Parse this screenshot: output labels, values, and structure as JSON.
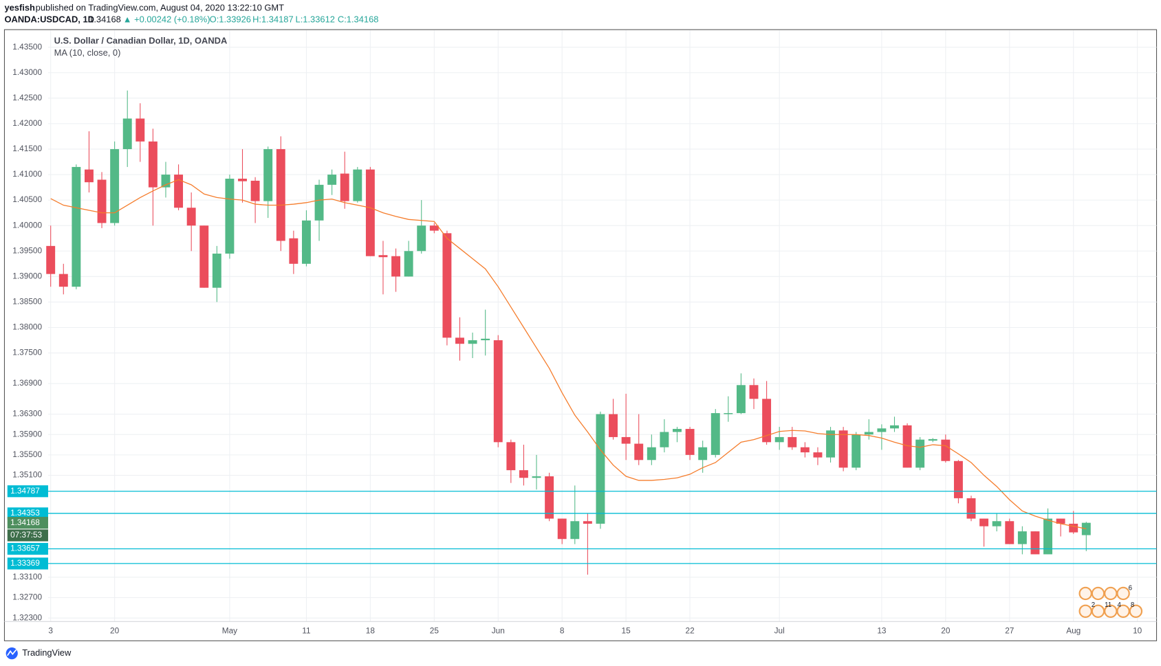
{
  "header": {
    "author": "yesfish",
    "published": "published on TradingView.com, August 04, 2020 13:22:10 GMT",
    "symbol": "OANDA:USDCAD, 1D",
    "last": "1.34168",
    "change": "▲ +0.00242 (+0.18%)",
    "open": "O:1.33926",
    "high": "H:1.34187",
    "low": "L:1.33612",
    "close": "C:1.34168"
  },
  "footer": {
    "brand": "TradingView"
  },
  "chart_data": {
    "type": "candlestick",
    "title": "U.S. Dollar / Canadian Dollar, 1D, OANDA",
    "up_color": "#53b987",
    "down_color": "#eb4d5c",
    "grid": true,
    "ylim": [
      1.3223,
      1.4383
    ],
    "xlim": [
      -0.2,
      86.5
    ],
    "yticks": [
      {
        "value": 1.435,
        "label": "1.43500"
      },
      {
        "value": 1.43,
        "label": "1.43000"
      },
      {
        "value": 1.425,
        "label": "1.42500"
      },
      {
        "value": 1.42,
        "label": "1.42000"
      },
      {
        "value": 1.415,
        "label": "1.41500"
      },
      {
        "value": 1.41,
        "label": "1.41000"
      },
      {
        "value": 1.405,
        "label": "1.40500"
      },
      {
        "value": 1.4,
        "label": "1.40000"
      },
      {
        "value": 1.395,
        "label": "1.39500"
      },
      {
        "value": 1.39,
        "label": "1.39000"
      },
      {
        "value": 1.385,
        "label": "1.38500"
      },
      {
        "value": 1.38,
        "label": "1.38000"
      },
      {
        "value": 1.375,
        "label": "1.37500"
      },
      {
        "value": 1.369,
        "label": "1.36900"
      },
      {
        "value": 1.363,
        "label": "1.36300"
      },
      {
        "value": 1.359,
        "label": "1.35900"
      },
      {
        "value": 1.355,
        "label": "1.35500"
      },
      {
        "value": 1.351,
        "label": "1.35100"
      },
      {
        "value": 1.331,
        "label": "1.33100"
      },
      {
        "value": 1.327,
        "label": "1.32700"
      },
      {
        "value": 1.323,
        "label": "1.32300"
      }
    ],
    "xticks": [
      {
        "value": 0,
        "label": "3"
      },
      {
        "value": 5,
        "label": "20"
      },
      {
        "value": 14,
        "label": "May"
      },
      {
        "value": 20,
        "label": "11"
      },
      {
        "value": 25,
        "label": "18"
      },
      {
        "value": 30,
        "label": "25"
      },
      {
        "value": 35,
        "label": "Jun"
      },
      {
        "value": 40,
        "label": "8"
      },
      {
        "value": 45,
        "label": "15"
      },
      {
        "value": 50,
        "label": "22"
      },
      {
        "value": 57,
        "label": "Jul"
      },
      {
        "value": 65,
        "label": "13"
      },
      {
        "value": 70,
        "label": "20"
      },
      {
        "value": 75,
        "label": "27"
      },
      {
        "value": 80,
        "label": "Aug"
      },
      {
        "value": 85,
        "label": "10"
      }
    ],
    "open": [
      1.396,
      1.3905,
      1.388,
      1.411,
      1.409,
      1.4005,
      1.415,
      1.421,
      1.4165,
      1.4075,
      1.41,
      1.4035,
      1.4,
      1.3878,
      1.3945,
      1.4092,
      1.4088,
      1.4048,
      1.415,
      1.3975,
      1.3925,
      1.401,
      1.408,
      1.4102,
      1.4048,
      1.411,
      1.3942,
      1.394,
      1.39,
      1.395,
      1.4,
      1.3985,
      1.378,
      1.3768,
      1.3775,
      1.3775,
      1.3575,
      1.352,
      1.3505,
      1.3508,
      1.3425,
      1.3385,
      1.342,
      1.3415,
      1.363,
      1.3585,
      1.3572,
      1.354,
      1.3565,
      1.3595,
      1.3601,
      1.354,
      1.355,
      1.363,
      1.3632,
      1.3687,
      1.366,
      1.3575,
      1.3585,
      1.3565,
      1.3555,
      1.3545,
      1.3598,
      1.3525,
      1.359,
      1.3595,
      1.3602,
      1.3608,
      1.3525,
      1.3578,
      1.358,
      1.3538,
      1.3465,
      1.3425,
      1.341,
      1.342,
      1.3375,
      1.34,
      1.3355,
      1.3425,
      1.3415,
      1.33926
    ],
    "high": [
      1.4,
      1.3925,
      1.412,
      1.4185,
      1.4105,
      1.4165,
      1.4265,
      1.424,
      1.419,
      1.4125,
      1.412,
      1.4065,
      1.4,
      1.396,
      1.41,
      1.415,
      1.4095,
      1.4155,
      1.4175,
      1.399,
      1.403,
      1.409,
      1.411,
      1.4145,
      1.4115,
      1.4115,
      1.397,
      1.3955,
      1.397,
      1.405,
      1.4005,
      1.399,
      1.382,
      1.379,
      1.3835,
      1.3785,
      1.358,
      1.357,
      1.355,
      1.3515,
      1.3425,
      1.349,
      1.3435,
      1.3635,
      1.366,
      1.367,
      1.363,
      1.359,
      1.362,
      1.3605,
      1.3605,
      1.3578,
      1.364,
      1.3665,
      1.371,
      1.37,
      1.3695,
      1.3605,
      1.3605,
      1.3575,
      1.3565,
      1.3605,
      1.3605,
      1.3595,
      1.362,
      1.361,
      1.3625,
      1.3612,
      1.3585,
      1.3583,
      1.359,
      1.354,
      1.347,
      1.3425,
      1.3435,
      1.3425,
      1.341,
      1.34,
      1.3445,
      1.3425,
      1.344,
      1.34187
    ],
    "low": [
      1.388,
      1.3865,
      1.3875,
      1.4065,
      1.3995,
      1.4,
      1.4115,
      1.4125,
      1.4,
      1.4055,
      1.403,
      1.395,
      1.3878,
      1.385,
      1.3935,
      1.4045,
      1.4005,
      1.4015,
      1.395,
      1.3905,
      1.392,
      1.397,
      1.406,
      1.4033,
      1.4045,
      1.394,
      1.3865,
      1.387,
      1.39,
      1.3945,
      1.3985,
      1.3765,
      1.3735,
      1.374,
      1.3745,
      1.3565,
      1.3495,
      1.349,
      1.3482,
      1.342,
      1.3375,
      1.3375,
      1.3315,
      1.3405,
      1.358,
      1.354,
      1.353,
      1.353,
      1.3555,
      1.3575,
      1.354,
      1.3515,
      1.3545,
      1.3615,
      1.363,
      1.364,
      1.357,
      1.356,
      1.356,
      1.3545,
      1.353,
      1.3535,
      1.3518,
      1.352,
      1.358,
      1.356,
      1.3595,
      1.3525,
      1.352,
      1.3575,
      1.3535,
      1.3455,
      1.342,
      1.337,
      1.34,
      1.3375,
      1.3355,
      1.3355,
      1.3355,
      1.339,
      1.3395,
      1.33612
    ],
    "close": [
      1.3905,
      1.388,
      1.4115,
      1.4085,
      1.4005,
      1.415,
      1.421,
      1.4165,
      1.4075,
      1.41,
      1.4035,
      1.4,
      1.3878,
      1.3945,
      1.4092,
      1.4087,
      1.4048,
      1.415,
      1.397,
      1.3925,
      1.401,
      1.408,
      1.41,
      1.4048,
      1.411,
      1.394,
      1.3938,
      1.39,
      1.395,
      1.4,
      1.399,
      1.378,
      1.3768,
      1.3775,
      1.3778,
      1.3575,
      1.352,
      1.3505,
      1.3508,
      1.3425,
      1.3385,
      1.342,
      1.3415,
      1.363,
      1.3585,
      1.3572,
      1.354,
      1.3565,
      1.3595,
      1.3601,
      1.355,
      1.3565,
      1.3632,
      1.3632,
      1.3687,
      1.366,
      1.3575,
      1.3585,
      1.3565,
      1.3555,
      1.3545,
      1.3598,
      1.3525,
      1.359,
      1.3595,
      1.3602,
      1.3608,
      1.3525,
      1.358,
      1.3581,
      1.3538,
      1.3465,
      1.3425,
      1.341,
      1.342,
      1.3375,
      1.34,
      1.3355,
      1.3425,
      1.3415,
      1.3398,
      1.34168
    ],
    "ma": {
      "name": "MA (10, close, 0)",
      "color": "#f57c2b",
      "values": [
        1.4053,
        1.404,
        1.4035,
        1.403,
        1.4025,
        1.4025,
        1.404,
        1.4055,
        1.4068,
        1.408,
        1.409,
        1.408,
        1.4062,
        1.4055,
        1.4052,
        1.405,
        1.4042,
        1.404,
        1.404,
        1.4042,
        1.4045,
        1.405,
        1.4052,
        1.4045,
        1.404,
        1.4035,
        1.4025,
        1.4018,
        1.4012,
        1.401,
        1.4008,
        1.3975,
        1.3955,
        1.3935,
        1.3915,
        1.388,
        1.384,
        1.38,
        1.376,
        1.372,
        1.3672,
        1.3628,
        1.3595,
        1.356,
        1.353,
        1.3508,
        1.35,
        1.35,
        1.3502,
        1.3505,
        1.3512,
        1.3525,
        1.3535,
        1.3555,
        1.3575,
        1.358,
        1.3588,
        1.3596,
        1.3598,
        1.3597,
        1.3592,
        1.359,
        1.359,
        1.359,
        1.3588,
        1.3583,
        1.3575,
        1.3568,
        1.3565,
        1.357,
        1.3568,
        1.3552,
        1.3535,
        1.351,
        1.3488,
        1.3462,
        1.344,
        1.343,
        1.3422,
        1.3415,
        1.341,
        1.3405
      ]
    },
    "price_lines": {
      "color": "#00bcd4",
      "values": [
        1.34787,
        1.34353,
        1.33657,
        1.33369
      ]
    },
    "last_price": {
      "value": 1.34168,
      "color": "#4e8f5e"
    },
    "countdown": "07:37:53",
    "events": [
      6,
      2,
      11,
      4,
      8
    ]
  }
}
